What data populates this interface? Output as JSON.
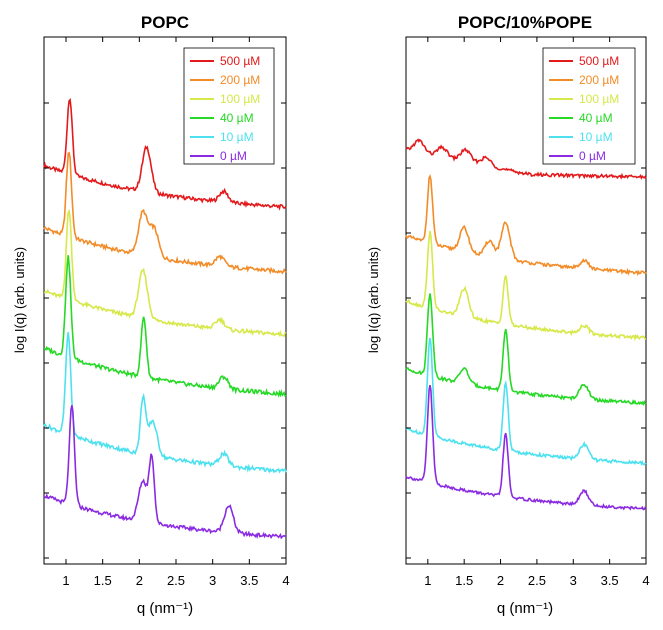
{
  "chart_data": [
    {
      "type": "line",
      "title": "POPC",
      "xlabel": "q (nm⁻¹)",
      "ylabel": "log I(q) (arb. units)",
      "xlim": [
        0.7,
        4.0
      ],
      "xticks": [
        "1",
        "1.5",
        "2",
        "2.5",
        "3",
        "3.5",
        "4"
      ],
      "y_scale": "log, curves vertically offset",
      "grid": false,
      "legend_position": "top-right",
      "series": [
        {
          "name": "500 µM",
          "color": "#e31a1c",
          "peaks": [
            {
              "q": 1.05,
              "height": 0.85
            },
            {
              "q": 2.1,
              "height": 0.5
            },
            {
              "q": 3.15,
              "height": 0.12
            }
          ]
        },
        {
          "name": "200 µM",
          "color": "#f28c28",
          "peaks": [
            {
              "q": 1.04,
              "height": 0.9
            },
            {
              "q": 2.05,
              "height": 0.45
            },
            {
              "q": 2.2,
              "height": 0.3
            },
            {
              "q": 3.1,
              "height": 0.1
            }
          ]
        },
        {
          "name": "100 µM",
          "color": "#d6e84a",
          "peaks": [
            {
              "q": 1.04,
              "height": 0.95
            },
            {
              "q": 2.05,
              "height": 0.5
            },
            {
              "q": 3.1,
              "height": 0.1
            }
          ]
        },
        {
          "name": "40 µM",
          "color": "#26d926",
          "peaks": [
            {
              "q": 1.03,
              "height": 1.0
            },
            {
              "q": 2.06,
              "height": 0.6
            },
            {
              "q": 3.15,
              "height": 0.12
            }
          ]
        },
        {
          "name": "10 µM",
          "color": "#4de1f0",
          "peaks": [
            {
              "q": 1.03,
              "height": 1.0
            },
            {
              "q": 2.05,
              "height": 0.55
            },
            {
              "q": 2.18,
              "height": 0.35
            },
            {
              "q": 3.15,
              "height": 0.12
            }
          ]
        },
        {
          "name": "0 µM",
          "color": "#8a2be2",
          "peaks": [
            {
              "q": 1.08,
              "height": 1.1
            },
            {
              "q": 2.05,
              "height": 0.45
            },
            {
              "q": 2.17,
              "height": 0.7
            },
            {
              "q": 3.22,
              "height": 0.3
            }
          ]
        }
      ]
    },
    {
      "type": "line",
      "title": "POPC/10%POPE",
      "xlabel": "q (nm⁻¹)",
      "ylabel": "log I(q) (arb. units)",
      "xlim": [
        0.7,
        4.0
      ],
      "xticks": [
        "1",
        "1.5",
        "2",
        "2.5",
        "3",
        "3.5",
        "4"
      ],
      "y_scale": "log, curves vertically offset",
      "grid": false,
      "legend_position": "top-right",
      "series": [
        {
          "name": "500 µM",
          "color": "#e31a1c",
          "peaks": [
            {
              "q": 0.88,
              "height": 0.15
            },
            {
              "q": 1.2,
              "height": 0.12
            },
            {
              "q": 1.52,
              "height": 0.15
            },
            {
              "q": 1.8,
              "height": 0.1
            }
          ]
        },
        {
          "name": "200 µM",
          "color": "#f28c28",
          "peaks": [
            {
              "q": 1.03,
              "height": 0.85
            },
            {
              "q": 1.5,
              "height": 0.3
            },
            {
              "q": 1.85,
              "height": 0.2
            },
            {
              "q": 2.07,
              "height": 0.45
            },
            {
              "q": 3.15,
              "height": 0.1
            }
          ]
        },
        {
          "name": "100 µM",
          "color": "#d6e84a",
          "peaks": [
            {
              "q": 1.03,
              "height": 0.95
            },
            {
              "q": 1.5,
              "height": 0.35
            },
            {
              "q": 2.07,
              "height": 0.6
            },
            {
              "q": 3.15,
              "height": 0.1
            }
          ]
        },
        {
          "name": "40 µM",
          "color": "#26d926",
          "peaks": [
            {
              "q": 1.03,
              "height": 1.1
            },
            {
              "q": 1.5,
              "height": 0.2
            },
            {
              "q": 2.07,
              "height": 0.8
            },
            {
              "q": 3.15,
              "height": 0.2
            }
          ]
        },
        {
          "name": "10 µM",
          "color": "#4de1f0",
          "peaks": [
            {
              "q": 1.03,
              "height": 1.3
            },
            {
              "q": 2.07,
              "height": 0.9
            },
            {
              "q": 3.15,
              "height": 0.2
            }
          ]
        },
        {
          "name": "0 µM",
          "color": "#8a2be2",
          "peaks": [
            {
              "q": 1.03,
              "height": 1.4
            },
            {
              "q": 2.07,
              "height": 0.9
            },
            {
              "q": 3.15,
              "height": 0.2
            }
          ]
        }
      ]
    }
  ]
}
